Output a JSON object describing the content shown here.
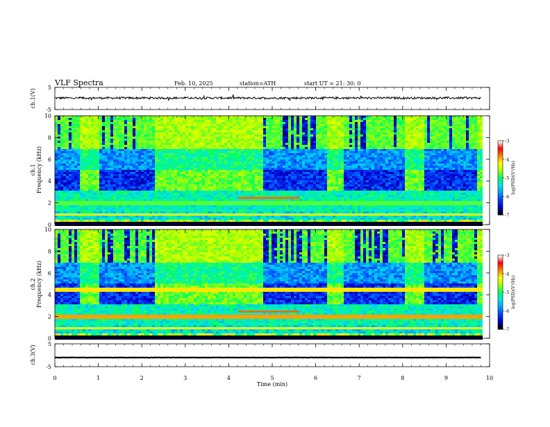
{
  "header": {
    "title": "VLF  Spectra",
    "date": "Feb. 10, 2025",
    "station": "station=ATH",
    "start_ut": "start  UT  =   21: 30: 0"
  },
  "chart_data": [
    {
      "id": "ch1-waveform",
      "type": "line",
      "ylabel": "ch.1(V)",
      "ylim": [
        -5,
        5
      ],
      "yticks": [
        5,
        -5
      ],
      "xlim": [
        0,
        10
      ],
      "xticks": [
        0,
        1,
        2,
        3,
        4,
        5,
        6,
        7,
        8,
        9,
        10
      ],
      "data_end_min": 9.8,
      "approx_level": 0.2,
      "approx_amplitude": 0.6
    },
    {
      "id": "ch1-spectrogram",
      "type": "heatmap",
      "ylabel": "ch.1\nFrequency  (kHz)",
      "ylim": [
        0,
        10
      ],
      "yticks": [
        0,
        2,
        4,
        6,
        8,
        10
      ],
      "xlim": [
        0,
        10
      ],
      "xticks": [
        0,
        1,
        2,
        3,
        4,
        5,
        6,
        7,
        8,
        9,
        10
      ],
      "data_end_min": 9.8,
      "active_intervals_min": [
        [
          0.55,
          1.0
        ],
        [
          2.3,
          4.75
        ],
        [
          6.2,
          6.6
        ],
        [
          8.0,
          8.45
        ],
        [
          9.65,
          9.8
        ]
      ],
      "colorbar": {
        "label": "log(PSD)(V²/Hz)",
        "range": [
          -7,
          -3
        ],
        "ticks": [
          -3,
          -4,
          -5,
          -6,
          -7
        ]
      }
    },
    {
      "id": "ch2-spectrogram",
      "type": "heatmap",
      "ylabel": "ch.2\nFrequency  (kHz)",
      "ylim": [
        0,
        10
      ],
      "yticks": [
        0,
        2,
        4,
        6,
        8,
        10
      ],
      "xlim": [
        0,
        10
      ],
      "xticks": [
        0,
        1,
        2,
        3,
        4,
        5,
        6,
        7,
        8,
        9,
        10
      ],
      "data_end_min": 9.8,
      "active_intervals_min": [
        [
          0.55,
          1.0
        ],
        [
          2.3,
          4.75
        ],
        [
          6.2,
          6.6
        ],
        [
          8.0,
          8.45
        ],
        [
          9.65,
          9.8
        ]
      ],
      "colorbar": {
        "label": "log(PSD)(V²/Hz)",
        "range": [
          -7,
          -3
        ],
        "ticks": [
          -3,
          -4,
          -5,
          -6,
          -7
        ]
      }
    },
    {
      "id": "ch3-waveform",
      "type": "line",
      "ylabel": "ch.3(V)",
      "ylim": [
        -5,
        5
      ],
      "yticks": [
        5,
        -5
      ],
      "xlim": [
        0,
        10
      ],
      "xticks": [
        0,
        1,
        2,
        3,
        4,
        5,
        6,
        7,
        8,
        9,
        10
      ],
      "xlabel": "Time  (min)",
      "data_end_min": 9.8,
      "approx_level": -1.0,
      "approx_amplitude": 0.15
    }
  ],
  "colors": {
    "scale": [
      "#000000",
      "#0000c8",
      "#0040ff",
      "#00a0ff",
      "#00e6e6",
      "#00ff66",
      "#aaff00",
      "#ffff00",
      "#ff8800",
      "#ff0000",
      "#ffffff"
    ]
  }
}
